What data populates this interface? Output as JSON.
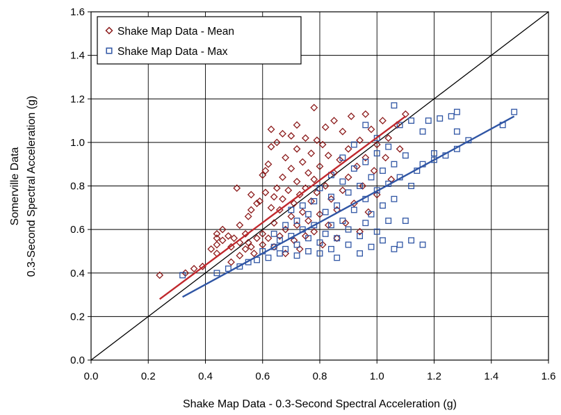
{
  "chart_data": {
    "type": "scatter",
    "xlabel": "Shake Map Data - 0.3-Second Spectral Acceleration (g)",
    "ylabel_lines": [
      "Somerville Data",
      "0.3-Second Spectral Acceleration (g)"
    ],
    "xlim": [
      0,
      1.6
    ],
    "ylim": [
      0,
      1.6
    ],
    "x_ticks": [
      0,
      0.2,
      0.4,
      0.6,
      0.8,
      1.0,
      1.2,
      1.4,
      1.6
    ],
    "y_ticks": [
      0,
      0.2,
      0.4,
      0.6,
      0.8,
      1.0,
      1.2,
      1.4,
      1.6
    ],
    "x_tick_labels": [
      "0.0",
      "0.2",
      "0.4",
      "0.6",
      "0.8",
      "1.0",
      "1.2",
      "1.4",
      "1.6"
    ],
    "y_tick_labels": [
      "0.0",
      "0.2",
      "0.4",
      "0.6",
      "0.8",
      "1.0",
      "1.2",
      "1.4",
      "1.6"
    ],
    "grid": true,
    "legend_position": "top-left",
    "reference_line": {
      "x": [
        0,
        1.6
      ],
      "y": [
        0,
        1.6
      ],
      "color": "#000000"
    },
    "series": [
      {
        "name": "Shake Map Data - Mean",
        "marker": "diamond",
        "color": "#8B1A1A",
        "trendline": {
          "x": [
            0.24,
            1.1
          ],
          "y": [
            0.28,
            1.12
          ],
          "color": "#C0282D"
        },
        "points": [
          [
            0.24,
            0.39
          ],
          [
            0.33,
            0.4
          ],
          [
            0.36,
            0.42
          ],
          [
            0.39,
            0.43
          ],
          [
            0.42,
            0.51
          ],
          [
            0.44,
            0.49
          ],
          [
            0.44,
            0.53
          ],
          [
            0.44,
            0.56
          ],
          [
            0.44,
            0.58
          ],
          [
            0.46,
            0.55
          ],
          [
            0.46,
            0.6
          ],
          [
            0.48,
            0.57
          ],
          [
            0.49,
            0.45
          ],
          [
            0.49,
            0.52
          ],
          [
            0.5,
            0.56
          ],
          [
            0.51,
            0.79
          ],
          [
            0.52,
            0.48
          ],
          [
            0.52,
            0.54
          ],
          [
            0.52,
            0.62
          ],
          [
            0.54,
            0.51
          ],
          [
            0.54,
            0.58
          ],
          [
            0.55,
            0.54
          ],
          [
            0.55,
            0.66
          ],
          [
            0.56,
            0.69
          ],
          [
            0.56,
            0.76
          ],
          [
            0.56,
            0.52
          ],
          [
            0.57,
            0.49
          ],
          [
            0.58,
            0.56
          ],
          [
            0.58,
            0.72
          ],
          [
            0.59,
            0.73
          ],
          [
            0.6,
            0.85
          ],
          [
            0.6,
            0.53
          ],
          [
            0.6,
            0.58
          ],
          [
            0.61,
            0.77
          ],
          [
            0.61,
            0.87
          ],
          [
            0.62,
            0.9
          ],
          [
            0.62,
            0.56
          ],
          [
            0.63,
            1.06
          ],
          [
            0.63,
            0.98
          ],
          [
            0.63,
            0.7
          ],
          [
            0.64,
            0.75
          ],
          [
            0.64,
            0.52
          ],
          [
            0.64,
            0.63
          ],
          [
            0.65,
            1.0
          ],
          [
            0.65,
            0.79
          ],
          [
            0.66,
            0.57
          ],
          [
            0.66,
            0.69
          ],
          [
            0.67,
            1.04
          ],
          [
            0.67,
            0.84
          ],
          [
            0.67,
            0.74
          ],
          [
            0.68,
            0.49
          ],
          [
            0.68,
            0.6
          ],
          [
            0.68,
            0.93
          ],
          [
            0.69,
            0.78
          ],
          [
            0.7,
            1.03
          ],
          [
            0.7,
            0.88
          ],
          [
            0.7,
            0.66
          ],
          [
            0.71,
            0.55
          ],
          [
            0.71,
            0.72
          ],
          [
            0.72,
            1.08
          ],
          [
            0.72,
            0.97
          ],
          [
            0.72,
            0.82
          ],
          [
            0.72,
            0.62
          ],
          [
            0.73,
            0.76
          ],
          [
            0.73,
            0.51
          ],
          [
            0.74,
            0.91
          ],
          [
            0.74,
            0.68
          ],
          [
            0.75,
            1.02
          ],
          [
            0.75,
            0.79
          ],
          [
            0.75,
            0.57
          ],
          [
            0.76,
            0.86
          ],
          [
            0.76,
            0.64
          ],
          [
            0.77,
            0.95
          ],
          [
            0.77,
            0.73
          ],
          [
            0.78,
            1.16
          ],
          [
            0.78,
            0.83
          ],
          [
            0.78,
            0.59
          ],
          [
            0.79,
            1.01
          ],
          [
            0.79,
            0.77
          ],
          [
            0.8,
            0.89
          ],
          [
            0.8,
            0.67
          ],
          [
            0.81,
            0.53
          ],
          [
            0.81,
            0.99
          ],
          [
            0.82,
            1.07
          ],
          [
            0.82,
            0.8
          ],
          [
            0.83,
            0.62
          ],
          [
            0.83,
            0.94
          ],
          [
            0.84,
            0.74
          ],
          [
            0.85,
            1.1
          ],
          [
            0.85,
            0.86
          ],
          [
            0.86,
            0.56
          ],
          [
            0.86,
            0.69
          ],
          [
            0.87,
            0.92
          ],
          [
            0.88,
            1.05
          ],
          [
            0.88,
            0.78
          ],
          [
            0.89,
            0.63
          ],
          [
            0.9,
            0.97
          ],
          [
            0.9,
            0.84
          ],
          [
            0.91,
            1.12
          ],
          [
            0.92,
            0.72
          ],
          [
            0.93,
            0.89
          ],
          [
            0.94,
            0.59
          ],
          [
            0.94,
            1.01
          ],
          [
            0.95,
            0.8
          ],
          [
            0.96,
            1.13
          ],
          [
            0.96,
            0.93
          ],
          [
            0.97,
            0.68
          ],
          [
            0.98,
            1.06
          ],
          [
            0.99,
            0.87
          ],
          [
            1.0,
            0.99
          ],
          [
            1.0,
            0.76
          ],
          [
            1.02,
            1.1
          ],
          [
            1.03,
            0.93
          ],
          [
            1.04,
            1.02
          ],
          [
            1.05,
            0.83
          ],
          [
            1.07,
            1.08
          ],
          [
            1.08,
            0.97
          ],
          [
            1.1,
            1.13
          ]
        ]
      },
      {
        "name": "Shake Map Data - Max",
        "marker": "square",
        "color": "#2F55A4",
        "trendline": {
          "x": [
            0.32,
            1.48
          ],
          "y": [
            0.29,
            1.12
          ],
          "color": "#2F55A4"
        },
        "points": [
          [
            0.32,
            0.39
          ],
          [
            0.44,
            0.4
          ],
          [
            0.48,
            0.42
          ],
          [
            0.52,
            0.43
          ],
          [
            0.55,
            0.45
          ],
          [
            0.58,
            0.46
          ],
          [
            0.6,
            0.5
          ],
          [
            0.62,
            0.47
          ],
          [
            0.64,
            0.52
          ],
          [
            0.64,
            0.58
          ],
          [
            0.66,
            0.49
          ],
          [
            0.66,
            0.55
          ],
          [
            0.68,
            0.62
          ],
          [
            0.68,
            0.51
          ],
          [
            0.7,
            0.57
          ],
          [
            0.7,
            0.69
          ],
          [
            0.72,
            0.48
          ],
          [
            0.72,
            0.53
          ],
          [
            0.72,
            0.64
          ],
          [
            0.74,
            0.6
          ],
          [
            0.74,
            0.71
          ],
          [
            0.76,
            0.5
          ],
          [
            0.76,
            0.56
          ],
          [
            0.76,
            0.67
          ],
          [
            0.78,
            0.73
          ],
          [
            0.78,
            0.62
          ],
          [
            0.8,
            0.49
          ],
          [
            0.8,
            0.54
          ],
          [
            0.8,
            0.79
          ],
          [
            0.82,
            0.58
          ],
          [
            0.82,
            0.68
          ],
          [
            0.84,
            0.85
          ],
          [
            0.84,
            0.75
          ],
          [
            0.84,
            0.51
          ],
          [
            0.84,
            0.62
          ],
          [
            0.86,
            0.47
          ],
          [
            0.86,
            0.56
          ],
          [
            0.86,
            0.71
          ],
          [
            0.88,
            0.82
          ],
          [
            0.88,
            0.64
          ],
          [
            0.88,
            0.93
          ],
          [
            0.9,
            0.53
          ],
          [
            0.9,
            0.6
          ],
          [
            0.9,
            0.77
          ],
          [
            0.92,
            0.69
          ],
          [
            0.92,
            0.88
          ],
          [
            0.92,
            0.99
          ],
          [
            0.94,
            0.49
          ],
          [
            0.94,
            0.57
          ],
          [
            0.94,
            0.8
          ],
          [
            0.96,
            0.63
          ],
          [
            0.96,
            0.74
          ],
          [
            0.96,
            0.91
          ],
          [
            0.96,
            1.08
          ],
          [
            0.98,
            0.52
          ],
          [
            0.98,
            0.67
          ],
          [
            0.98,
            0.84
          ],
          [
            1.0,
            0.59
          ],
          [
            1.0,
            0.78
          ],
          [
            1.0,
            0.95
          ],
          [
            1.0,
            1.02
          ],
          [
            1.02,
            0.55
          ],
          [
            1.02,
            0.71
          ],
          [
            1.02,
            0.87
          ],
          [
            1.04,
            0.64
          ],
          [
            1.04,
            0.81
          ],
          [
            1.04,
            0.98
          ],
          [
            1.06,
            0.51
          ],
          [
            1.06,
            0.74
          ],
          [
            1.06,
            0.9
          ],
          [
            1.06,
            1.17
          ],
          [
            1.08,
            0.53
          ],
          [
            1.08,
            0.84
          ],
          [
            1.08,
            1.08
          ],
          [
            1.1,
            0.64
          ],
          [
            1.1,
            0.94
          ],
          [
            1.12,
            0.55
          ],
          [
            1.12,
            0.8
          ],
          [
            1.12,
            1.1
          ],
          [
            1.14,
            0.87
          ],
          [
            1.16,
            0.53
          ],
          [
            1.16,
            0.9
          ],
          [
            1.16,
            1.05
          ],
          [
            1.18,
            1.1
          ],
          [
            1.2,
            0.92
          ],
          [
            1.2,
            0.95
          ],
          [
            1.22,
            1.11
          ],
          [
            1.24,
            0.94
          ],
          [
            1.26,
            1.12
          ],
          [
            1.28,
            0.97
          ],
          [
            1.28,
            1.05
          ],
          [
            1.28,
            1.14
          ],
          [
            1.32,
            1.01
          ],
          [
            1.44,
            1.08
          ],
          [
            1.48,
            1.14
          ]
        ]
      }
    ]
  }
}
